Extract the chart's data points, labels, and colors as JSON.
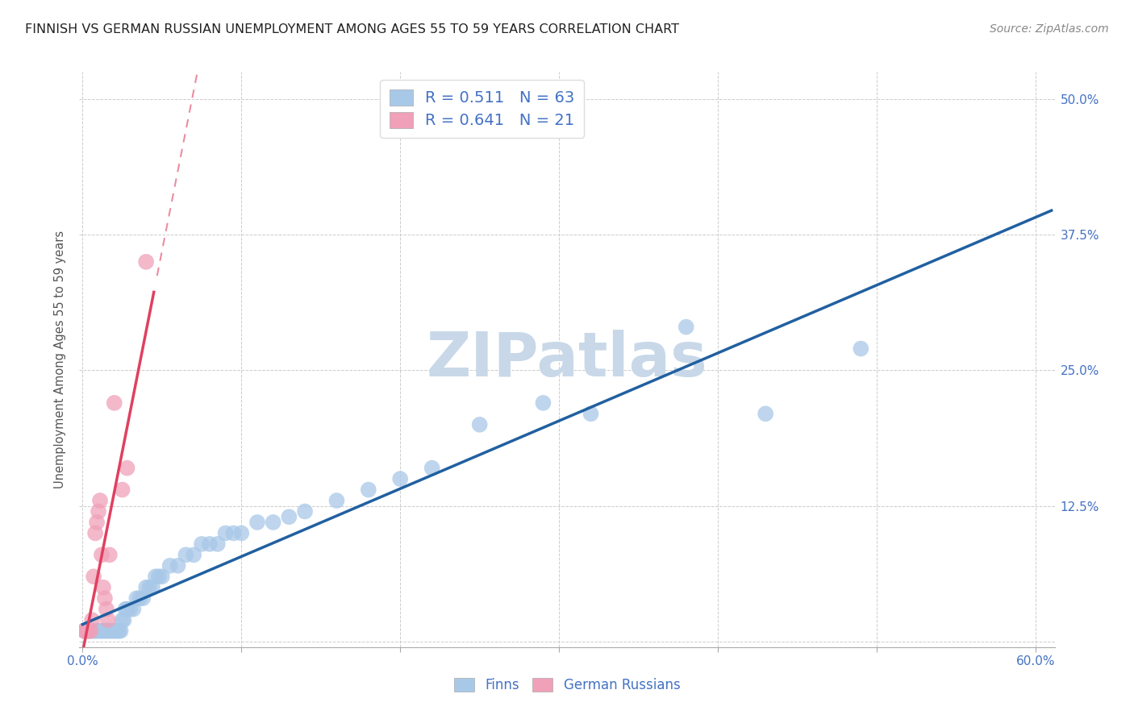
{
  "title": "FINNISH VS GERMAN RUSSIAN UNEMPLOYMENT AMONG AGES 55 TO 59 YEARS CORRELATION CHART",
  "source": "Source: ZipAtlas.com",
  "ylabel": "Unemployment Among Ages 55 to 59 years",
  "xlim": [
    -0.002,
    0.612
  ],
  "ylim": [
    -0.005,
    0.525
  ],
  "xticks": [
    0.0,
    0.1,
    0.2,
    0.3,
    0.4,
    0.5,
    0.6
  ],
  "xticklabels": [
    "0.0%",
    "",
    "",
    "",
    "",
    "",
    "60.0%"
  ],
  "yticks": [
    0.0,
    0.125,
    0.25,
    0.375,
    0.5
  ],
  "yticklabels_right": [
    "",
    "12.5%",
    "25.0%",
    "37.5%",
    "50.0%"
  ],
  "finns_R": 0.511,
  "finns_N": 63,
  "german_R": 0.641,
  "german_N": 21,
  "color_finn_scatter": "#a8c8e8",
  "color_finn_line": "#2060a0",
  "color_german_scatter": "#f0a0b8",
  "color_german_line": "#e04060",
  "watermark_color": "#c8d8e8",
  "tick_label_color": "#4472c4",
  "legend_text_color": "#4472c4",
  "finns_x": [
    0.001,
    0.002,
    0.003,
    0.004,
    0.005,
    0.006,
    0.007,
    0.008,
    0.009,
    0.01,
    0.011,
    0.012,
    0.013,
    0.014,
    0.015,
    0.016,
    0.017,
    0.018,
    0.019,
    0.02,
    0.021,
    0.022,
    0.023,
    0.024,
    0.025,
    0.026,
    0.027,
    0.028,
    0.03,
    0.032,
    0.034,
    0.036,
    0.038,
    0.04,
    0.042,
    0.044,
    0.046,
    0.048,
    0.05,
    0.055,
    0.06,
    0.065,
    0.07,
    0.075,
    0.08,
    0.085,
    0.09,
    0.095,
    0.1,
    0.11,
    0.12,
    0.13,
    0.14,
    0.16,
    0.18,
    0.2,
    0.22,
    0.25,
    0.29,
    0.32,
    0.38,
    0.43,
    0.49
  ],
  "finns_y": [
    0.01,
    0.01,
    0.01,
    0.01,
    0.01,
    0.01,
    0.01,
    0.01,
    0.01,
    0.01,
    0.01,
    0.01,
    0.01,
    0.01,
    0.01,
    0.01,
    0.01,
    0.01,
    0.01,
    0.01,
    0.01,
    0.01,
    0.01,
    0.01,
    0.02,
    0.02,
    0.03,
    0.03,
    0.03,
    0.03,
    0.04,
    0.04,
    0.04,
    0.05,
    0.05,
    0.05,
    0.06,
    0.06,
    0.06,
    0.07,
    0.07,
    0.08,
    0.08,
    0.09,
    0.09,
    0.09,
    0.1,
    0.1,
    0.1,
    0.11,
    0.11,
    0.115,
    0.12,
    0.13,
    0.14,
    0.15,
    0.16,
    0.2,
    0.22,
    0.21,
    0.29,
    0.21,
    0.27
  ],
  "german_x": [
    0.001,
    0.002,
    0.003,
    0.004,
    0.005,
    0.006,
    0.007,
    0.008,
    0.009,
    0.01,
    0.011,
    0.012,
    0.013,
    0.014,
    0.015,
    0.016,
    0.017,
    0.02,
    0.025,
    0.028,
    0.04
  ],
  "german_y": [
    0.01,
    0.01,
    0.01,
    0.01,
    0.01,
    0.02,
    0.06,
    0.1,
    0.11,
    0.12,
    0.13,
    0.08,
    0.05,
    0.04,
    0.03,
    0.02,
    0.08,
    0.22,
    0.14,
    0.16,
    0.35
  ]
}
